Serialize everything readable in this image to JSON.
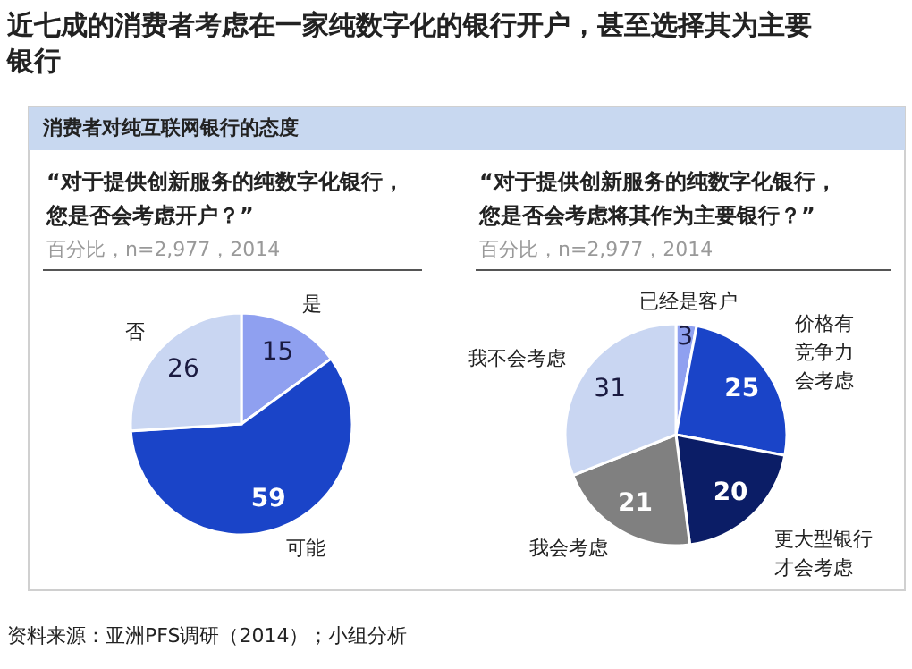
{
  "chart_data": [
    {
      "type": "pie",
      "title": "“对于提供创新服务的纯数字化银行，您是否会考虑开户？”",
      "subtitle": "百分比，n=2,977，2014",
      "annotations": [
        "近七成的消费者考虑在一家纯数字化的银行开户，甚至选择其为主要银行",
        "消费者对纯互联网银行的态度",
        "资料来源：亚洲PFS调研（2014）；小组分析"
      ],
      "categories": [
        "是",
        "可能",
        "否"
      ],
      "values": [
        15,
        59,
        26
      ],
      "colors": [
        "#8fa0f0",
        "#1a44c8",
        "#c9d6f2"
      ],
      "data_labels": true
    },
    {
      "type": "pie",
      "title": "“对于提供创新服务的纯数字化银行，您是否会考虑将其作为主要银行？”",
      "subtitle": "百分比，n=2,977，2014",
      "categories": [
        "已经是客户",
        "价格有竞争力会考虑",
        "更大型银行才会考虑",
        "我会考虑",
        "我不会考虑"
      ],
      "values": [
        3,
        25,
        20,
        21,
        31
      ],
      "colors": [
        "#8fa0f0",
        "#1a44c8",
        "#0b1d66",
        "#808080",
        "#c9d6f2"
      ],
      "data_labels": true
    }
  ]
}
